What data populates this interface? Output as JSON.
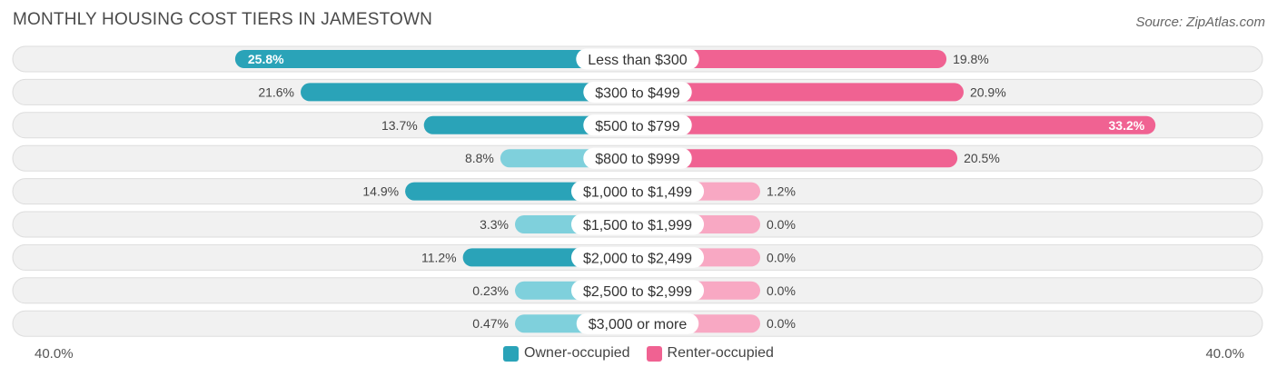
{
  "header": {
    "title": "MONTHLY HOUSING COST TIERS IN JAMESTOWN",
    "source": "Source: ZipAtlas.com"
  },
  "colors": {
    "owner_dark": "#2aa3b8",
    "owner_light": "#7fd0dc",
    "renter_dark": "#f06292",
    "renter_light": "#f8a8c3",
    "row_bg": "#f1f1f1",
    "row_border": "#dddddd"
  },
  "chart_data": {
    "type": "bar",
    "orientation": "diverging-horizontal",
    "title": "MONTHLY HOUSING COST TIERS IN JAMESTOWN",
    "categories": [
      "Less than $300",
      "$300 to $499",
      "$500 to $799",
      "$800 to $999",
      "$1,000 to $1,499",
      "$1,500 to $1,999",
      "$2,000 to $2,499",
      "$2,500 to $2,999",
      "$3,000 or more"
    ],
    "series": [
      {
        "name": "Owner-occupied",
        "values": [
          25.8,
          21.6,
          13.7,
          8.8,
          14.9,
          3.3,
          11.2,
          0.23,
          0.47
        ],
        "labels": [
          "25.8%",
          "21.6%",
          "13.7%",
          "8.8%",
          "14.9%",
          "3.3%",
          "11.2%",
          "0.23%",
          "0.47%"
        ]
      },
      {
        "name": "Renter-occupied",
        "values": [
          19.8,
          20.9,
          33.2,
          20.5,
          1.2,
          0.0,
          0.0,
          0.0,
          0.0
        ],
        "labels": [
          "19.8%",
          "20.9%",
          "33.2%",
          "20.5%",
          "1.2%",
          "0.0%",
          "0.0%",
          "0.0%",
          "0.0%"
        ]
      }
    ],
    "xlim": [
      -40,
      40
    ],
    "axis_labels": {
      "left": "40.0%",
      "right": "40.0%"
    },
    "legend": [
      "Owner-occupied",
      "Renter-occupied"
    ],
    "legend_position": "bottom-center"
  }
}
